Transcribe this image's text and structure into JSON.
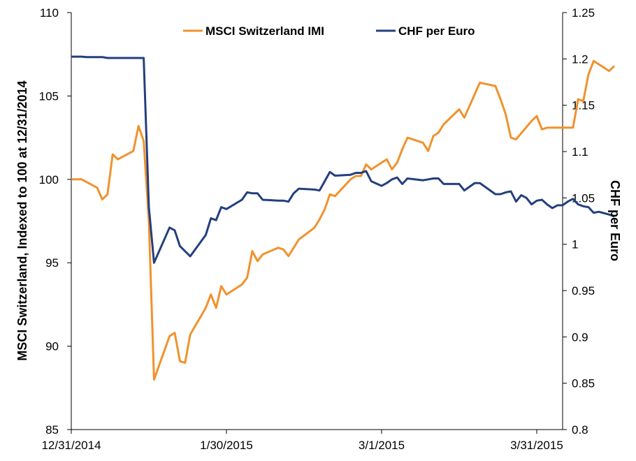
{
  "chart_data": {
    "type": "line",
    "title": "",
    "x_ticks": [
      "12/31/2014",
      "1/30/2015",
      "3/1/2015",
      "3/31/2015"
    ],
    "xlim": [
      "12/31/2014",
      "4/5/2015"
    ],
    "left_axis": {
      "label": "MSCI Switzerland,  Indexed to 100 at 12/31/2014",
      "ylim": [
        85,
        110
      ],
      "ticks": [
        "85",
        "90",
        "95",
        "100",
        "105",
        "110"
      ]
    },
    "right_axis": {
      "label": "CHF per Euro",
      "ylim": [
        0.8,
        1.25
      ],
      "ticks": [
        "0.8",
        "0.85",
        "0.9",
        "0.95",
        "1",
        "1.05",
        "1.1",
        "1.15",
        "1.2",
        "1.25"
      ]
    },
    "legend_position": "top-center",
    "grid": false,
    "series": [
      {
        "name": "MSCI Switzerland IMI",
        "axis": "left",
        "color": "#F0922D",
        "points": [
          [
            "12/31/2014",
            100.0
          ],
          [
            "1/2/2015",
            100.0
          ],
          [
            "1/5/2015",
            99.5
          ],
          [
            "1/6/2015",
            98.8
          ],
          [
            "1/7/2015",
            99.1
          ],
          [
            "1/8/2015",
            101.5
          ],
          [
            "1/9/2015",
            101.2
          ],
          [
            "1/12/2015",
            101.7
          ],
          [
            "1/13/2015",
            103.2
          ],
          [
            "1/14/2015",
            102.3
          ],
          [
            "1/15/2015",
            97.5
          ],
          [
            "1/16/2015",
            88.0
          ],
          [
            "1/19/2015",
            90.6
          ],
          [
            "1/20/2015",
            90.8
          ],
          [
            "1/21/2015",
            89.1
          ],
          [
            "1/22/2015",
            89.0
          ],
          [
            "1/23/2015",
            90.7
          ],
          [
            "1/26/2015",
            92.3
          ],
          [
            "1/27/2015",
            93.1
          ],
          [
            "1/28/2015",
            92.3
          ],
          [
            "1/29/2015",
            93.6
          ],
          [
            "1/30/2015",
            93.1
          ],
          [
            "2/2/2015",
            93.7
          ],
          [
            "2/3/2015",
            94.1
          ],
          [
            "2/4/2015",
            95.7
          ],
          [
            "2/5/2015",
            95.1
          ],
          [
            "2/6/2015",
            95.5
          ],
          [
            "2/9/2015",
            95.9
          ],
          [
            "2/10/2015",
            95.8
          ],
          [
            "2/11/2015",
            95.4
          ],
          [
            "2/12/2015",
            95.9
          ],
          [
            "2/13/2015",
            96.4
          ],
          [
            "2/16/2015",
            97.1
          ],
          [
            "2/17/2015",
            97.6
          ],
          [
            "2/18/2015",
            98.2
          ],
          [
            "2/19/2015",
            99.1
          ],
          [
            "2/20/2015",
            99.0
          ],
          [
            "2/23/2015",
            100.0
          ],
          [
            "2/24/2015",
            100.2
          ],
          [
            "2/25/2015",
            100.2
          ],
          [
            "2/26/2015",
            100.9
          ],
          [
            "2/27/2015",
            100.6
          ],
          [
            "3/2/2015",
            101.2
          ],
          [
            "3/3/2015",
            100.6
          ],
          [
            "3/4/2015",
            101.0
          ],
          [
            "3/5/2015",
            101.8
          ],
          [
            "3/6/2015",
            102.5
          ],
          [
            "3/9/2015",
            102.2
          ],
          [
            "3/10/2015",
            101.7
          ],
          [
            "3/11/2015",
            102.6
          ],
          [
            "3/12/2015",
            102.8
          ],
          [
            "3/13/2015",
            103.3
          ],
          [
            "3/16/2015",
            104.2
          ],
          [
            "3/17/2015",
            103.7
          ],
          [
            "3/18/2015",
            104.4
          ],
          [
            "3/19/2015",
            105.1
          ],
          [
            "3/20/2015",
            105.8
          ],
          [
            "3/23/2015",
            105.6
          ],
          [
            "3/24/2015",
            104.8
          ],
          [
            "3/25/2015",
            103.9
          ],
          [
            "3/26/2015",
            102.5
          ],
          [
            "3/27/2015",
            102.4
          ],
          [
            "3/30/2015",
            103.5
          ],
          [
            "3/31/2015",
            103.8
          ],
          [
            "4/1/2015",
            103.0
          ],
          [
            "4/2/2015",
            103.1
          ],
          [
            "4/7/2015",
            103.1
          ],
          [
            "4/8/2015",
            104.8
          ],
          [
            "4/9/2015",
            104.7
          ],
          [
            "4/10/2015",
            106.3
          ],
          [
            "4/11/2015",
            107.1
          ],
          [
            "4/14/2015",
            106.5
          ],
          [
            "4/15/2015",
            106.8
          ]
        ]
      },
      {
        "name": "CHF per Euro",
        "axis": "right",
        "color": "#243F7E",
        "points": [
          [
            "12/31/2014",
            1.2024
          ],
          [
            "1/2/2015",
            1.2024
          ],
          [
            "1/3/2015",
            1.202
          ],
          [
            "1/6/2015",
            1.202
          ],
          [
            "1/7/2015",
            1.201
          ],
          [
            "1/14/2015",
            1.201
          ],
          [
            "1/15/2015",
            1.04
          ],
          [
            "1/16/2015",
            0.98
          ],
          [
            "1/19/2015",
            1.018
          ],
          [
            "1/20/2015",
            1.015
          ],
          [
            "1/21/2015",
            0.998
          ],
          [
            "1/23/2015",
            0.987
          ],
          [
            "1/26/2015",
            1.01
          ],
          [
            "1/27/2015",
            1.028
          ],
          [
            "1/28/2015",
            1.026
          ],
          [
            "1/29/2015",
            1.04
          ],
          [
            "1/30/2015",
            1.038
          ],
          [
            "2/2/2015",
            1.048
          ],
          [
            "2/3/2015",
            1.056
          ],
          [
            "2/4/2015",
            1.055
          ],
          [
            "2/5/2015",
            1.055
          ],
          [
            "2/6/2015",
            1.048
          ],
          [
            "2/9/2015",
            1.047
          ],
          [
            "2/10/2015",
            1.047
          ],
          [
            "2/11/2015",
            1.046
          ],
          [
            "2/12/2015",
            1.055
          ],
          [
            "2/13/2015",
            1.06
          ],
          [
            "2/16/2015",
            1.059
          ],
          [
            "2/17/2015",
            1.058
          ],
          [
            "2/18/2015",
            1.068
          ],
          [
            "2/19/2015",
            1.078
          ],
          [
            "2/20/2015",
            1.074
          ],
          [
            "2/23/2015",
            1.075
          ],
          [
            "2/24/2015",
            1.077
          ],
          [
            "2/25/2015",
            1.077
          ],
          [
            "2/26/2015",
            1.079
          ],
          [
            "2/27/2015",
            1.068
          ],
          [
            "3/1/2015",
            1.063
          ],
          [
            "3/2/2015",
            1.066
          ],
          [
            "3/3/2015",
            1.07
          ],
          [
            "3/4/2015",
            1.072
          ],
          [
            "3/5/2015",
            1.065
          ],
          [
            "3/6/2015",
            1.071
          ],
          [
            "3/9/2015",
            1.069
          ],
          [
            "3/10/2015",
            1.07
          ],
          [
            "3/11/2015",
            1.071
          ],
          [
            "3/12/2015",
            1.071
          ],
          [
            "3/13/2015",
            1.065
          ],
          [
            "3/16/2015",
            1.065
          ],
          [
            "3/17/2015",
            1.058
          ],
          [
            "3/18/2015",
            1.062
          ],
          [
            "3/19/2015",
            1.066
          ],
          [
            "3/20/2015",
            1.066
          ],
          [
            "3/23/2015",
            1.054
          ],
          [
            "3/24/2015",
            1.054
          ],
          [
            "3/25/2015",
            1.056
          ],
          [
            "3/26/2015",
            1.057
          ],
          [
            "3/27/2015",
            1.046
          ],
          [
            "3/28/2015",
            1.053
          ],
          [
            "3/29/2015",
            1.05
          ],
          [
            "3/30/2015",
            1.043
          ],
          [
            "3/31/2015",
            1.047
          ],
          [
            "4/1/2015",
            1.048
          ],
          [
            "4/2/2015",
            1.043
          ],
          [
            "4/3/2015",
            1.039
          ],
          [
            "4/4/2015",
            1.042
          ],
          [
            "4/5/2015",
            1.042
          ],
          [
            "4/6/2015",
            1.046
          ],
          [
            "4/7/2015",
            1.049
          ],
          [
            "4/8/2015",
            1.043
          ],
          [
            "4/9/2015",
            1.041
          ],
          [
            "4/10/2015",
            1.04
          ],
          [
            "4/11/2015",
            1.034
          ],
          [
            "4/12/2015",
            1.035
          ],
          [
            "4/14/2015",
            1.032
          ],
          [
            "4/15/2015",
            1.03
          ]
        ]
      }
    ]
  }
}
